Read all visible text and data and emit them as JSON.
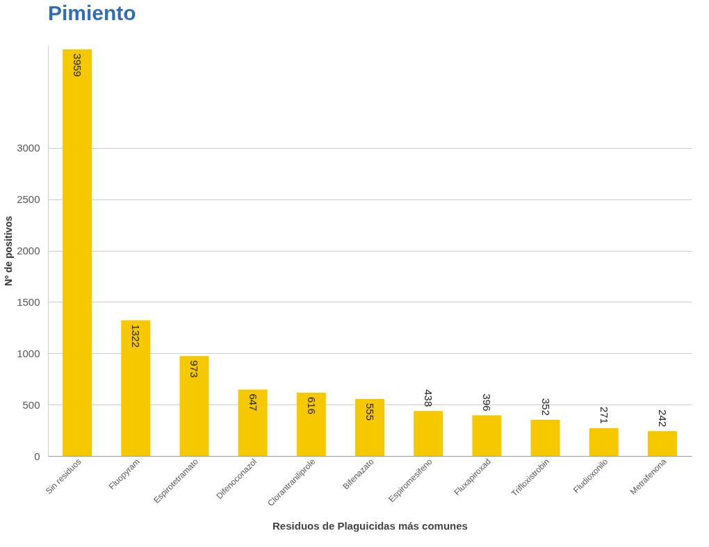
{
  "chart_data": {
    "type": "bar",
    "title": "Pimiento",
    "xlabel": "Residuos de Plaguicidas más comunes",
    "ylabel": "Nº de positivos",
    "categories": [
      "Sin residuos",
      "Fluopyram",
      "Espirotetramato",
      "Difenoconazol",
      "Clorantraniliprole",
      "Bifenazato",
      "Espiromesifeno",
      "Fluxapiroxad",
      "Trifloxistrobin",
      "Fludioxonilo",
      "Metrafenona"
    ],
    "values": [
      3959,
      1322,
      973,
      647,
      616,
      555,
      438,
      396,
      352,
      271,
      242
    ],
    "color": "#f5c800",
    "ylim": [
      0,
      4000
    ],
    "yticks": [
      0,
      500,
      1000,
      1500,
      2000,
      2500,
      3000
    ],
    "grid": "y",
    "data_labels": true
  }
}
